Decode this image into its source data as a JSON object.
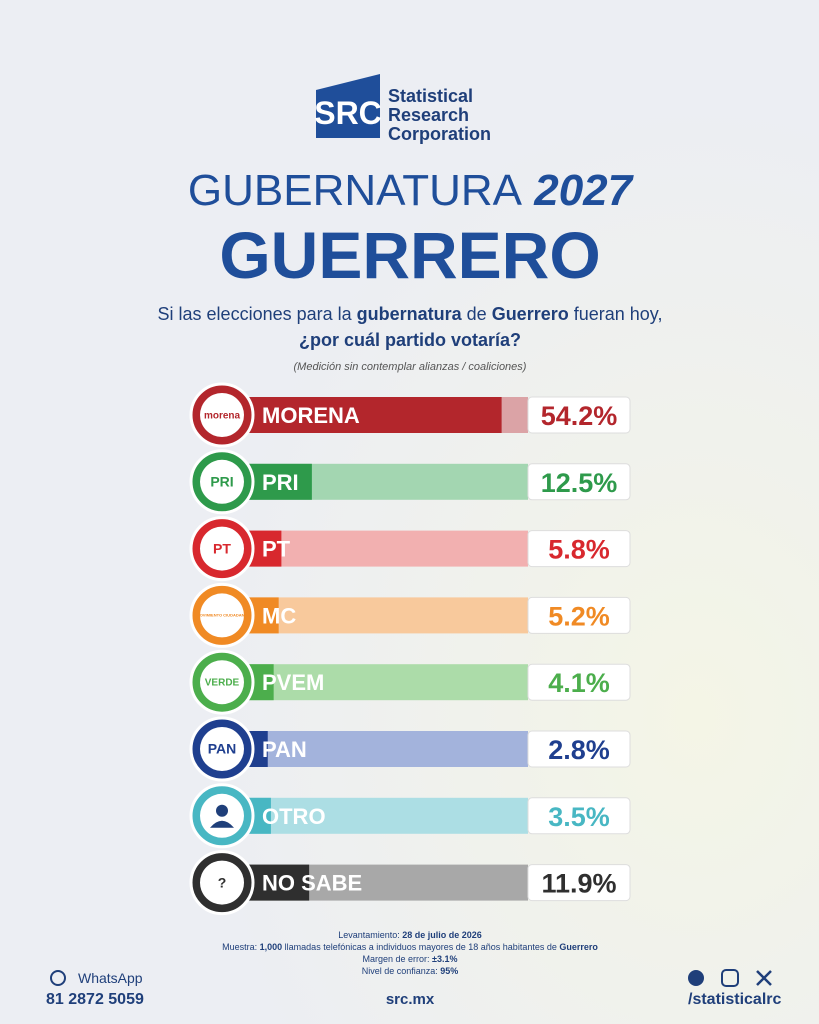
{
  "brand": {
    "mark": "SRC",
    "name_lines": [
      "Statistical",
      "Research",
      "Corporation"
    ]
  },
  "header": {
    "title": "GUBERNATURA",
    "year": "2027",
    "subtitle": "GUERRERO"
  },
  "question_lines": [
    [
      {
        "text": "Si las elecciones para la ",
        "bold": false
      },
      {
        "text": "gubernatura",
        "bold": true
      },
      {
        "text": " de ",
        "bold": false
      },
      {
        "text": "Guerrero",
        "bold": true
      },
      {
        "text": " fueran hoy,",
        "bold": false
      }
    ],
    [
      {
        "text": "¿por cuál partido votaría?",
        "bold": true
      }
    ]
  ],
  "note": "(Medición sin contemplar alianzas / coaliciones)",
  "chart_data": {
    "type": "hbar",
    "categories": [
      "MORENA",
      "PRI",
      "PT",
      "MC",
      "PVEM",
      "PAN",
      "OTRO",
      "NO SABE"
    ],
    "logos": [
      "morena",
      "PRI",
      "PT",
      "MOVIMIENTO CIUDADANO",
      "VERDE",
      "PAN",
      null,
      "?"
    ],
    "values": [
      54.2,
      12.5,
      5.8,
      5.2,
      4.1,
      2.8,
      3.5,
      11.9
    ],
    "value_labels": [
      "54.2%",
      "12.5%",
      "5.8%",
      "5.2%",
      "4.1%",
      "2.8%",
      "3.5%",
      "11.9%"
    ],
    "colors": [
      "#b3262c",
      "#2e9a4b",
      "#d8282e",
      "#f08a24",
      "#4cae4c",
      "#1f3f8f",
      "#48b7c3",
      "#2f2f2f"
    ],
    "track_colors": [
      "#dba3a6",
      "#a3d6b1",
      "#f2b0b0",
      "#f8c99c",
      "#acdca9",
      "#a3b3dc",
      "#acdee4",
      "#a8a8a8"
    ],
    "xlim": [
      0,
      60
    ]
  },
  "footer_lines": [
    [
      {
        "text": "Levantamiento: ",
        "bold": false
      },
      {
        "text": "28 de julio de 2026",
        "bold": true
      }
    ],
    [
      {
        "text": "Muestra: ",
        "bold": false
      },
      {
        "text": "1,000",
        "bold": true
      },
      {
        "text": " llamadas telefónicas a individuos mayores de 18 años habitantes de ",
        "bold": false
      },
      {
        "text": "Guerrero",
        "bold": true
      }
    ],
    [
      {
        "text": "Margen de error: ",
        "bold": false
      },
      {
        "text": "±3.1%",
        "bold": true
      }
    ],
    [
      {
        "text": "Nivel de confianza: ",
        "bold": false
      },
      {
        "text": "95%",
        "bold": true
      }
    ]
  ],
  "contact": {
    "whatsapp_label": "WhatsApp",
    "phone": "81 2872 5059",
    "website": "src.mx",
    "social": "/statisticalrc"
  }
}
